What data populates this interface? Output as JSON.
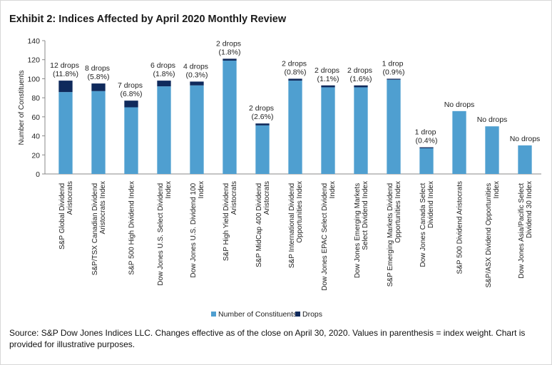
{
  "chart_data": {
    "type": "stacked_bar",
    "title": "Exhibit 2: Indices Affected by April 2020 Monthly Review",
    "ylabel": "Number of Constituents",
    "categories": [
      "S&P Global Dividend Aristocrats",
      "S&P/TSX Canadian Dividend Aristocrats Index",
      "S&P 500 High Dividend Index",
      "Dow Jones U.S. Select Dividend Index",
      "Dow Jones U.S. Dividend 100 Index",
      "S&P High Yield Dividend Aristocrats",
      "S&P MidCap 400 Dividend Aristocrats",
      "S&P International Dividend Opportunities Index",
      "Dow Jones EPAC Select Dividend Index",
      "Dow Jones Emerging Markets Select Dividend Index",
      "S&P Emerging Markets Dividend Opportunities Index",
      "Dow Jones Canada Select Dividend Index",
      "S&P 500 Dividend Aristocrats",
      "S&P/ASX Dividend Opportunities Index",
      "Dow Jones Asia/Pacific Select Dividend 30 Index"
    ],
    "series": [
      {
        "name": "Number of Constituents",
        "color": "#4f9fd0",
        "values": [
          86,
          87,
          70,
          92,
          93,
          119,
          51,
          98,
          91,
          91,
          99,
          27,
          66,
          50,
          30
        ]
      },
      {
        "name": "Drops",
        "color": "#0f2a5c",
        "values": [
          12,
          8,
          7,
          6,
          4,
          2,
          2,
          2,
          2,
          2,
          1,
          1,
          0,
          0,
          0
        ]
      }
    ],
    "bar_labels": [
      "12 drops (11.8%)",
      "8 drops (5.8%)",
      "7 drops (6.8%)",
      "6 drops (1.8%)",
      "4 drops (0.3%)",
      "2 drops (1.8%)",
      "2 drops (2.6%)",
      "2 drops (0.8%)",
      "2 drops (1.1%)",
      "2 drops (1.6%)",
      "1 drop (0.9%)",
      "1 drop (0.4%)",
      "No drops",
      "No drops",
      "No drops"
    ],
    "ylim": [
      0,
      140
    ],
    "yticks": [
      0,
      20,
      40,
      60,
      80,
      100,
      120,
      140
    ],
    "legend": "bottom",
    "source": "Source: S&P Dow Jones Indices LLC. Changes effective as of the close on April 30, 2020. Values in parenthesis = index weight. Chart is provided for illustrative purposes."
  }
}
